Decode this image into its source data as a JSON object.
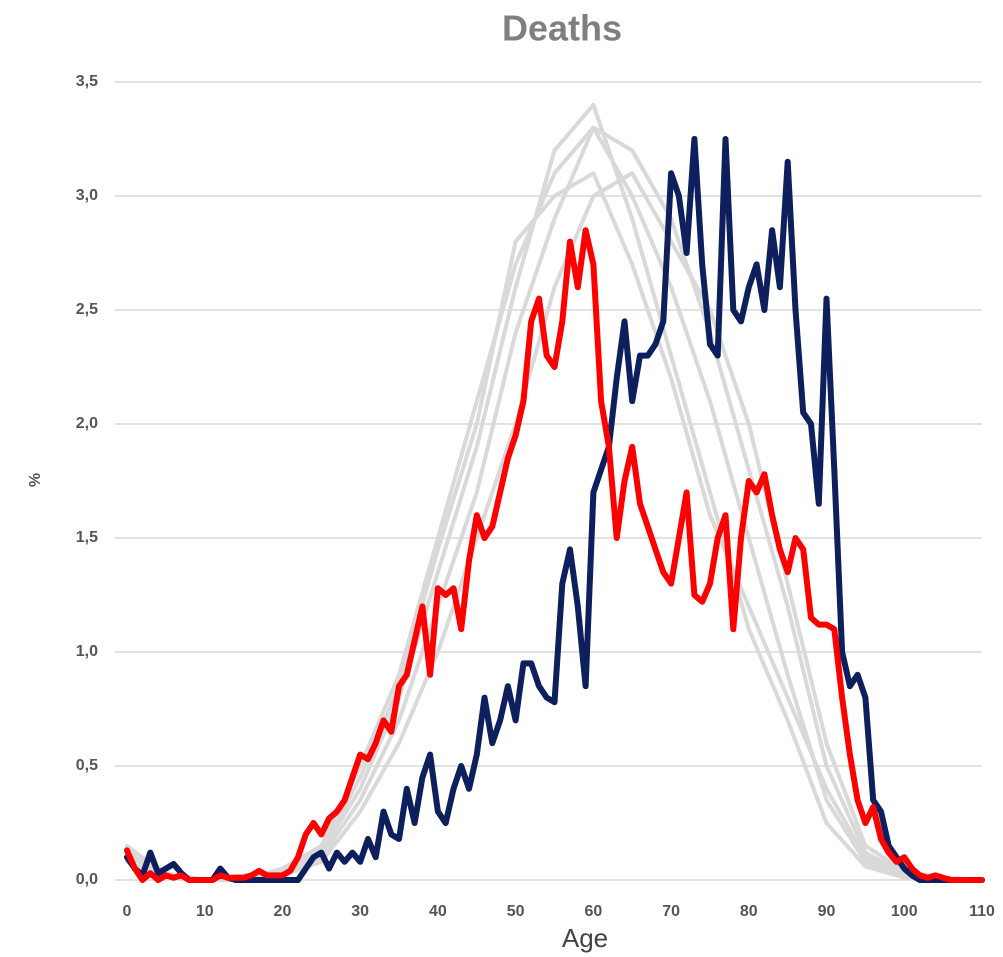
{
  "chart_data": {
    "type": "line",
    "title": "Deaths",
    "xlabel": "Age",
    "ylabel": "%",
    "x": [
      0,
      1,
      2,
      3,
      4,
      5,
      6,
      7,
      8,
      9,
      10,
      11,
      12,
      13,
      14,
      15,
      16,
      17,
      18,
      19,
      20,
      21,
      22,
      23,
      24,
      25,
      26,
      27,
      28,
      29,
      30,
      31,
      32,
      33,
      34,
      35,
      36,
      37,
      38,
      39,
      40,
      41,
      42,
      43,
      44,
      45,
      46,
      47,
      48,
      49,
      50,
      51,
      52,
      53,
      54,
      55,
      56,
      57,
      58,
      59,
      60,
      61,
      62,
      63,
      64,
      65,
      66,
      67,
      68,
      69,
      70,
      71,
      72,
      73,
      74,
      75,
      76,
      77,
      78,
      79,
      80,
      81,
      82,
      83,
      84,
      85,
      86,
      87,
      88,
      89,
      90,
      91,
      92,
      93,
      94,
      95,
      96,
      97,
      98,
      99,
      100,
      101,
      102,
      103,
      104,
      105,
      106,
      107,
      108,
      109,
      110
    ],
    "series": [
      {
        "color": "#d9d9d9",
        "x": [
          0,
          5,
          10,
          15,
          20,
          25,
          30,
          35,
          40,
          45,
          50,
          55,
          60,
          65,
          70,
          75,
          80,
          85,
          90,
          95,
          100,
          105,
          110
        ],
        "values": [
          0.15,
          0.02,
          0,
          0,
          0.05,
          0.15,
          0.5,
          0.9,
          1.5,
          2.1,
          2.7,
          3.1,
          3.3,
          3.0,
          2.6,
          2.1,
          1.5,
          0.9,
          0.35,
          0.08,
          0.02,
          0,
          0
        ]
      },
      {
        "color": "#d9d9d9",
        "x": [
          0,
          5,
          10,
          15,
          20,
          25,
          30,
          35,
          40,
          45,
          50,
          55,
          60,
          65,
          70,
          75,
          80,
          85,
          90,
          95,
          100,
          105,
          110
        ],
        "values": [
          0.1,
          0.03,
          0,
          0.02,
          0.03,
          0.1,
          0.35,
          0.7,
          1.2,
          1.7,
          2.4,
          2.9,
          3.3,
          3.2,
          2.9,
          2.4,
          1.8,
          1.2,
          0.5,
          0.12,
          0.03,
          0,
          0
        ]
      },
      {
        "color": "#d9d9d9",
        "x": [
          0,
          5,
          10,
          15,
          20,
          25,
          30,
          35,
          40,
          45,
          50,
          55,
          60,
          65,
          70,
          75,
          80,
          85,
          90,
          95,
          100,
          105,
          110
        ],
        "values": [
          0.12,
          0.02,
          0,
          0,
          0.04,
          0.12,
          0.4,
          0.8,
          1.35,
          1.9,
          2.6,
          3.2,
          3.4,
          2.9,
          2.3,
          1.7,
          1.1,
          0.7,
          0.25,
          0.06,
          0.01,
          0,
          0
        ]
      },
      {
        "color": "#d9d9d9",
        "x": [
          0,
          5,
          10,
          15,
          20,
          25,
          30,
          35,
          40,
          45,
          50,
          55,
          60,
          65,
          70,
          75,
          80,
          85,
          90,
          95,
          100,
          105,
          110
        ],
        "values": [
          0.08,
          0.01,
          0,
          0.01,
          0.02,
          0.08,
          0.3,
          0.6,
          1.0,
          1.5,
          2.0,
          2.6,
          3.0,
          3.1,
          2.8,
          2.5,
          2.0,
          1.3,
          0.6,
          0.15,
          0.04,
          0.01,
          0
        ]
      },
      {
        "color": "#d9d9d9",
        "x": [
          0,
          5,
          10,
          15,
          20,
          25,
          30,
          35,
          40,
          45,
          50,
          55,
          60,
          65,
          70,
          75,
          80,
          85,
          90,
          95,
          100,
          105,
          110
        ],
        "values": [
          0.14,
          0.03,
          0,
          0,
          0.05,
          0.13,
          0.45,
          0.85,
          1.45,
          2.0,
          2.8,
          3.0,
          3.1,
          2.7,
          2.2,
          1.6,
          1.2,
          0.8,
          0.4,
          0.1,
          0.02,
          0,
          0
        ]
      },
      {
        "color": "#0d1f5c",
        "values": [
          0.1,
          0.05,
          0.02,
          0.12,
          0.03,
          0.05,
          0.07,
          0.03,
          0,
          0,
          0,
          0,
          0.05,
          0.01,
          0,
          0,
          0,
          0,
          0,
          0,
          0,
          0,
          0,
          0.05,
          0.1,
          0.12,
          0.05,
          0.12,
          0.08,
          0.12,
          0.08,
          0.18,
          0.1,
          0.3,
          0.2,
          0.18,
          0.4,
          0.25,
          0.45,
          0.55,
          0.3,
          0.25,
          0.4,
          0.5,
          0.4,
          0.55,
          0.8,
          0.6,
          0.7,
          0.85,
          0.7,
          0.95,
          0.95,
          0.85,
          0.8,
          0.78,
          1.3,
          1.45,
          1.2,
          0.85,
          1.7,
          1.8,
          1.9,
          2.2,
          2.45,
          2.1,
          2.3,
          2.3,
          2.35,
          2.45,
          3.1,
          3.0,
          2.75,
          3.25,
          2.7,
          2.35,
          2.3,
          3.25,
          2.5,
          2.45,
          2.6,
          2.7,
          2.5,
          2.85,
          2.6,
          3.15,
          2.5,
          2.05,
          2.0,
          1.65,
          2.55,
          1.8,
          1.0,
          0.85,
          0.9,
          0.8,
          0.35,
          0.3,
          0.15,
          0.1,
          0.05,
          0.02,
          0,
          0,
          0,
          0,
          0,
          0,
          0,
          0,
          0
        ]
      },
      {
        "color": "#ff0000",
        "values": [
          0.13,
          0.05,
          0,
          0.03,
          0,
          0.02,
          0.01,
          0.02,
          0,
          0,
          0,
          0,
          0.02,
          0.01,
          0.01,
          0.01,
          0.02,
          0.04,
          0.02,
          0.02,
          0.02,
          0.04,
          0.1,
          0.2,
          0.25,
          0.2,
          0.27,
          0.3,
          0.35,
          0.45,
          0.55,
          0.53,
          0.6,
          0.7,
          0.65,
          0.85,
          0.9,
          1.05,
          1.2,
          0.9,
          1.28,
          1.25,
          1.28,
          1.1,
          1.4,
          1.6,
          1.5,
          1.55,
          1.7,
          1.85,
          1.95,
          2.1,
          2.45,
          2.55,
          2.3,
          2.25,
          2.45,
          2.8,
          2.6,
          2.85,
          2.7,
          2.1,
          1.9,
          1.5,
          1.75,
          1.9,
          1.65,
          1.55,
          1.45,
          1.35,
          1.3,
          1.5,
          1.7,
          1.25,
          1.22,
          1.3,
          1.5,
          1.6,
          1.1,
          1.5,
          1.75,
          1.7,
          1.78,
          1.6,
          1.45,
          1.35,
          1.5,
          1.45,
          1.15,
          1.12,
          1.12,
          1.1,
          0.8,
          0.55,
          0.35,
          0.25,
          0.32,
          0.18,
          0.12,
          0.08,
          0.1,
          0.05,
          0.02,
          0.01,
          0.02,
          0.01,
          0,
          0,
          0,
          0,
          0
        ]
      }
    ],
    "xlim": [
      0,
      110
    ],
    "xticks": [
      0,
      10,
      20,
      30,
      40,
      50,
      60,
      70,
      80,
      90,
      100,
      110
    ],
    "ylim": [
      0,
      3.5
    ],
    "yticks": [
      {
        "value": 0,
        "label": "0,0"
      },
      {
        "value": 0.5,
        "label": "0,5"
      },
      {
        "value": 1,
        "label": "1,0"
      },
      {
        "value": 1.5,
        "label": "1,5"
      },
      {
        "value": 2,
        "label": "2,0"
      },
      {
        "value": 2.5,
        "label": "2,5"
      },
      {
        "value": 3,
        "label": "3,0"
      },
      {
        "value": 3.5,
        "label": "3,5"
      }
    ],
    "grid": true
  }
}
